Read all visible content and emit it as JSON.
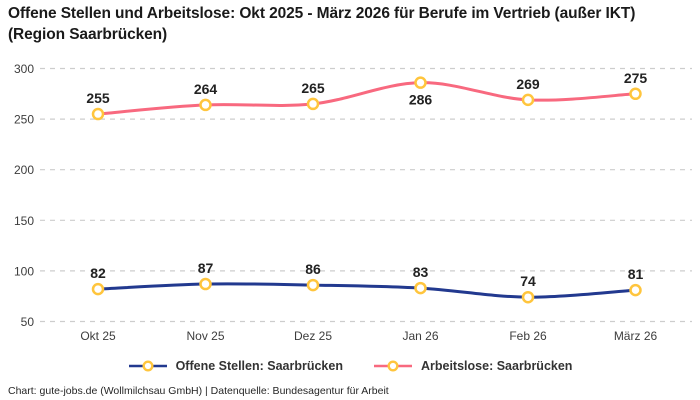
{
  "title": "Offene Stellen und Arbeitslose: Okt 2025 - März 2026 für Berufe im Vertrieb (außer IKT) (Region Saarbrücken)",
  "footer": "Chart: gute-jobs.de (Wollmilchsau GmbH) | Datenquelle: Bundesagentur für Arbeit",
  "colors": {
    "open_positions": "#22398F",
    "unemployed": "#F8697F",
    "marker_ring": "#FFC53D",
    "marker_fill": "#FFFFFF",
    "grid": "#CDCDCD",
    "value_label": "#222222",
    "axis_text": "#3D3D3D"
  },
  "chart_data": {
    "type": "line",
    "title": "Offene Stellen und Arbeitslose: Okt 2025 - März 2026 für Berufe im Vertrieb (außer IKT) (Region Saarbrücken)",
    "categories": [
      "Okt 25",
      "Nov 25",
      "Dez 25",
      "Jan 26",
      "Feb 26",
      "März 26"
    ],
    "series": [
      {
        "name": "Offene Stellen: Saarbrücken",
        "color": "#22398F",
        "values": [
          82,
          87,
          86,
          83,
          74,
          81
        ],
        "label_positions": [
          "above",
          "above",
          "above",
          "above",
          "above",
          "above"
        ]
      },
      {
        "name": "Arbeitslose: Saarbrücken",
        "color": "#F8697F",
        "values": [
          255,
          264,
          265,
          286,
          269,
          275
        ],
        "label_positions": [
          "above",
          "above",
          "above",
          "below",
          "above",
          "above"
        ]
      }
    ],
    "xlabel": "",
    "ylabel": "",
    "ylim": [
      50,
      300
    ],
    "yticks": [
      50,
      100,
      150,
      200,
      250,
      300
    ],
    "grid": "horizontal-dashed",
    "line_style": "smooth",
    "markers": "open-circle-yellow",
    "data_labels": true,
    "legend_position": "bottom"
  },
  "legend": {
    "items": [
      {
        "label": "Offene Stellen: Saarbrücken",
        "color": "#22398F"
      },
      {
        "label": "Arbeitslose: Saarbrücken",
        "color": "#F8697F"
      }
    ]
  }
}
